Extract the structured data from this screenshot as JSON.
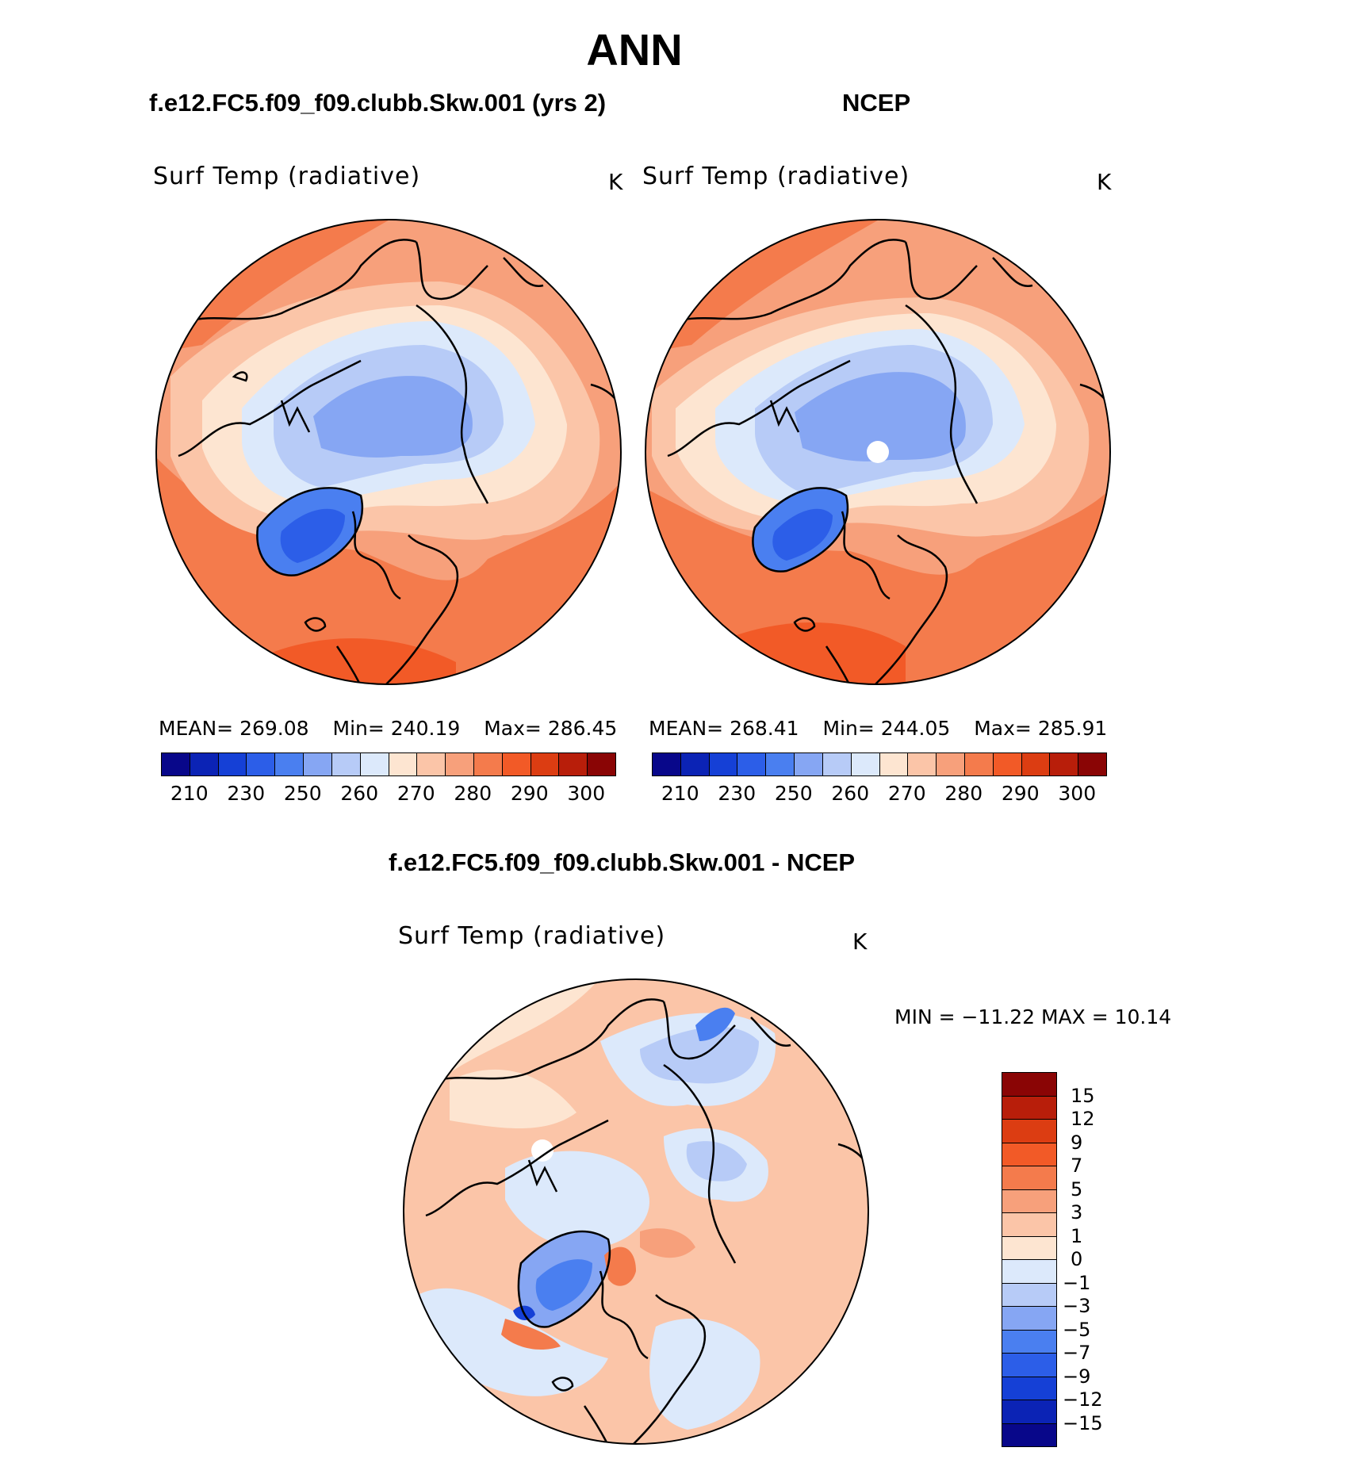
{
  "title": "ANN",
  "panels": [
    {
      "case": "f.e12.FC5.f09_f09.clubb.Skw.001 (yrs 2)",
      "variable": "Surf Temp (radiative)",
      "units": "K",
      "stats": {
        "mean_label": "MEAN=",
        "mean": "269.08",
        "min_label": "Min=",
        "min": "240.19",
        "max_label": "Max=",
        "max": "286.45"
      }
    },
    {
      "case": "NCEP",
      "variable": "Surf Temp (radiative)",
      "units": "K",
      "stats": {
        "mean_label": "MEAN=",
        "mean": "268.41",
        "min_label": "Min=",
        "min": "244.05",
        "max_label": "Max=",
        "max": "285.91"
      }
    }
  ],
  "diff_panel": {
    "case": "f.e12.FC5.f09_f09.clubb.Skw.001 - NCEP",
    "variable": "Surf Temp (radiative)",
    "units": "K",
    "minmax_text": "MIN = −11.22 MAX =   10.14"
  },
  "chart_data": [
    {
      "type": "heatmap",
      "subtype": "polar-stereographic contour map",
      "title": "f.e12.FC5.f09_f09.clubb.Skw.001 (yrs 2)",
      "variable": "Surf Temp (radiative)",
      "units": "K",
      "mean": 269.08,
      "min": 240.19,
      "max": 286.45,
      "colorbar_levels": [
        210,
        220,
        230,
        240,
        245,
        250,
        255,
        260,
        265,
        270,
        275,
        280,
        285,
        290,
        295,
        300
      ],
      "colorbar_tick_labels": [
        "210",
        "230",
        "250",
        "260",
        "270",
        "280",
        "290",
        "300"
      ],
      "colors": [
        "#08078a",
        "#0b23b5",
        "#1540d6",
        "#2c5ee8",
        "#4a7ff0",
        "#86a6f3",
        "#b7cbf7",
        "#dce9fb",
        "#fde5d1",
        "#fbc5a8",
        "#f7a07b",
        "#f47b4c",
        "#f25a27",
        "#dc3d12",
        "#b81e0a",
        "#8a0505"
      ]
    },
    {
      "type": "heatmap",
      "subtype": "polar-stereographic contour map",
      "title": "NCEP",
      "variable": "Surf Temp (radiative)",
      "units": "K",
      "mean": 268.41,
      "min": 244.05,
      "max": 285.91,
      "colorbar_levels": [
        210,
        220,
        230,
        240,
        245,
        250,
        255,
        260,
        265,
        270,
        275,
        280,
        285,
        290,
        295,
        300
      ],
      "colorbar_tick_labels": [
        "210",
        "230",
        "250",
        "260",
        "270",
        "280",
        "290",
        "300"
      ],
      "colors": [
        "#08078a",
        "#0b23b5",
        "#1540d6",
        "#2c5ee8",
        "#4a7ff0",
        "#86a6f3",
        "#b7cbf7",
        "#dce9fb",
        "#fde5d1",
        "#fbc5a8",
        "#f7a07b",
        "#f47b4c",
        "#f25a27",
        "#dc3d12",
        "#b81e0a",
        "#8a0505"
      ]
    },
    {
      "type": "heatmap",
      "subtype": "polar-stereographic difference contour map",
      "title": "f.e12.FC5.f09_f09.clubb.Skw.001 - NCEP",
      "variable": "Surf Temp (radiative)",
      "units": "K",
      "min": -11.22,
      "max": 10.14,
      "colorbar_tick_labels": [
        "15",
        "12",
        "9",
        "7",
        "5",
        "3",
        "1",
        "0",
        "−1",
        "−3",
        "−5",
        "−7",
        "−9",
        "−12",
        "−15"
      ],
      "colors": [
        "#8a0505",
        "#b81e0a",
        "#dc3d12",
        "#f25a27",
        "#f47b4c",
        "#f7a07b",
        "#fbc5a8",
        "#fde5d1",
        "#dce9fb",
        "#b7cbf7",
        "#86a6f3",
        "#4a7ff0",
        "#2c5ee8",
        "#1540d6",
        "#0b23b5",
        "#08078a"
      ]
    }
  ]
}
